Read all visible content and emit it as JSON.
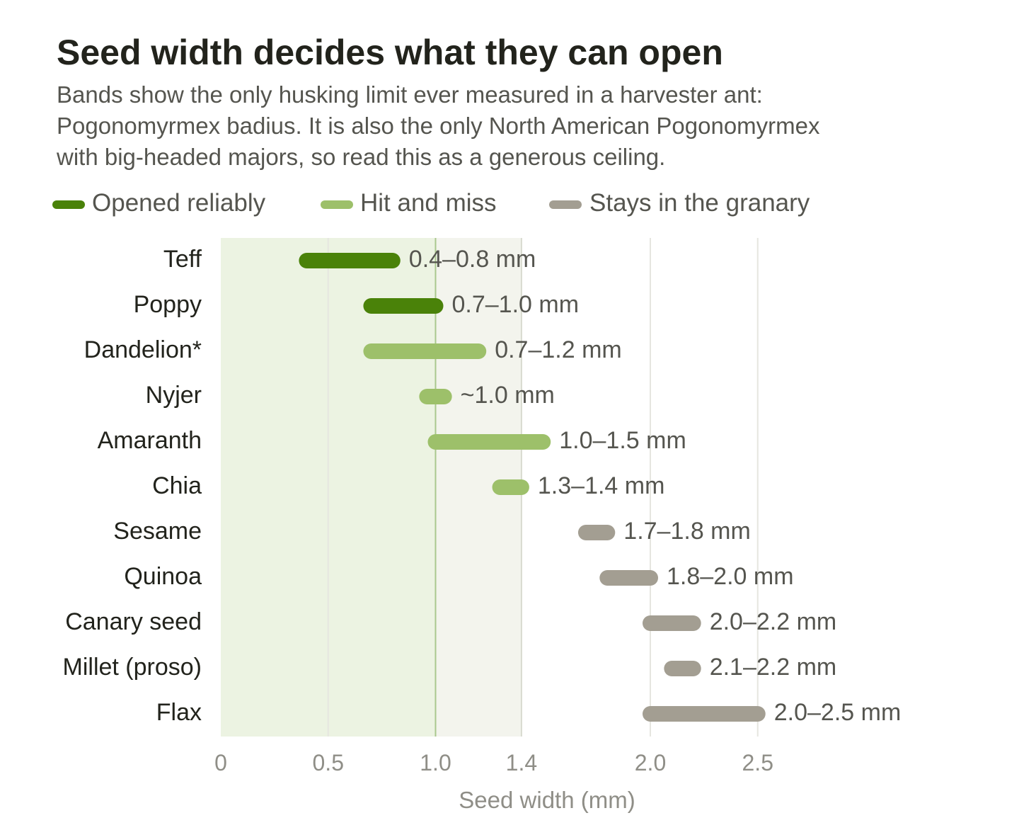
{
  "chart_data": {
    "type": "range-bar",
    "title": "Seed width decides what they can open",
    "subtitle_lines": [
      "Bands show the only husking limit ever measured in a harvester ant:",
      "Pogonomyrmex badius. It is also the only North American Pogonomyrmex",
      "with big-headed majors, so read this as a generous ceiling."
    ],
    "xlabel": "Seed width (mm)",
    "xlim": [
      0,
      3.0
    ],
    "x_ticks": [
      {
        "value": 0,
        "label": "0"
      },
      {
        "value": 0.5,
        "label": "0.5"
      },
      {
        "value": 1.0,
        "label": "1.0"
      },
      {
        "value": 1.4,
        "label": "1.4"
      },
      {
        "value": 2.0,
        "label": "2.0"
      },
      {
        "value": 2.5,
        "label": "2.5"
      }
    ],
    "gridlines": [
      0.5,
      2.0,
      2.5
    ],
    "bands": [
      {
        "from": 0,
        "to": 1.0,
        "color": "#ecf3e2"
      },
      {
        "from": 1.0,
        "to": 1.4,
        "color": "#f3f4ed"
      }
    ],
    "thresholds": [
      {
        "value": 1.0,
        "color": "#a9c78d"
      },
      {
        "value": 1.4,
        "color": "#d9dbd0"
      }
    ],
    "legend": [
      {
        "key": "reliable",
        "label": "Opened reliably",
        "color": "#4a8209"
      },
      {
        "key": "partial",
        "label": "Hit and miss",
        "color": "#9dc06a"
      },
      {
        "key": "none",
        "label": "Stays in the granary",
        "color": "#a39e92"
      }
    ],
    "series": [
      {
        "category": "Teff",
        "low": 0.4,
        "high": 0.8,
        "group": "reliable",
        "label": "0.4–0.8 mm"
      },
      {
        "category": "Poppy",
        "low": 0.7,
        "high": 1.0,
        "group": "reliable",
        "label": "0.7–1.0 mm"
      },
      {
        "category": "Dandelion*",
        "low": 0.7,
        "high": 1.2,
        "group": "partial",
        "label": "0.7–1.2 mm"
      },
      {
        "category": "Nyjer",
        "low": 0.96,
        "high": 1.04,
        "group": "partial",
        "label": "~1.0 mm"
      },
      {
        "category": "Amaranth",
        "low": 1.0,
        "high": 1.5,
        "group": "partial",
        "label": "1.0–1.5 mm"
      },
      {
        "category": "Chia",
        "low": 1.3,
        "high": 1.4,
        "group": "partial",
        "label": "1.3–1.4 mm"
      },
      {
        "category": "Sesame",
        "low": 1.7,
        "high": 1.8,
        "group": "none",
        "label": "1.7–1.8 mm"
      },
      {
        "category": "Quinoa",
        "low": 1.8,
        "high": 2.0,
        "group": "none",
        "label": "1.8–2.0 mm"
      },
      {
        "category": "Canary seed",
        "low": 2.0,
        "high": 2.2,
        "group": "none",
        "label": "2.0–2.2 mm"
      },
      {
        "category": "Millet (proso)",
        "low": 2.1,
        "high": 2.2,
        "group": "none",
        "label": "2.1–2.2 mm"
      },
      {
        "category": "Flax",
        "low": 2.0,
        "high": 2.5,
        "group": "none",
        "label": "2.0–2.5 mm"
      }
    ]
  }
}
